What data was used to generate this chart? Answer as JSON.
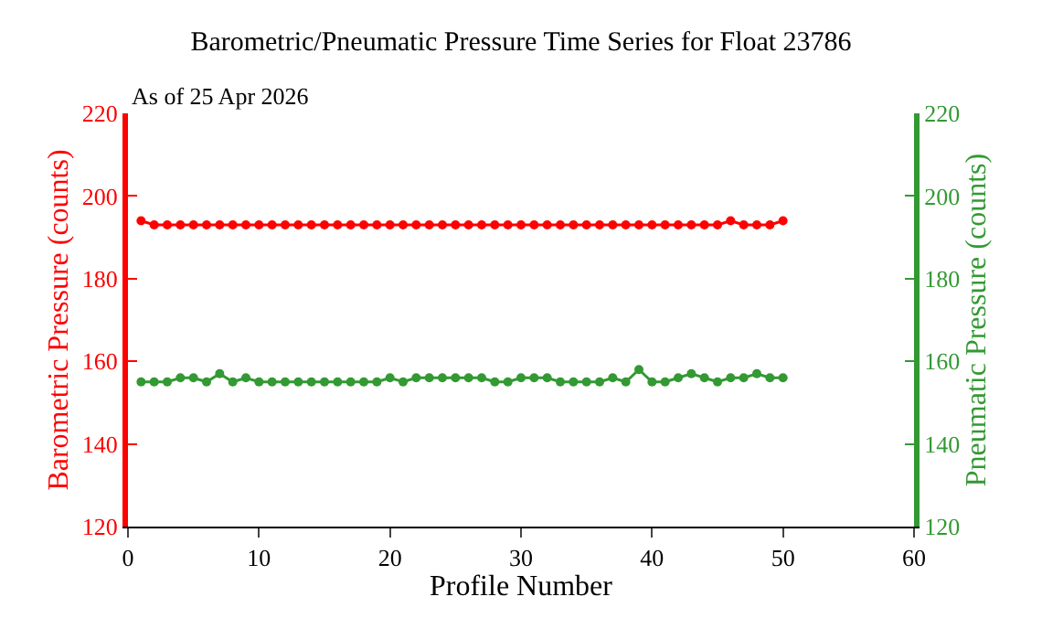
{
  "chart_data": {
    "type": "line",
    "title": "Barometric/Pneumatic Pressure Time Series for Float 23786",
    "subtitle": "As of 25 Apr 2026",
    "xlabel": "Profile Number",
    "ylabel": "Barometric Pressure (counts)",
    "y2label": "Pneumatic Pressure (counts)",
    "x": [
      1,
      2,
      3,
      4,
      5,
      6,
      7,
      8,
      9,
      10,
      11,
      12,
      13,
      14,
      15,
      16,
      17,
      18,
      19,
      20,
      21,
      22,
      23,
      24,
      25,
      26,
      27,
      28,
      29,
      30,
      31,
      32,
      33,
      34,
      35,
      36,
      37,
      38,
      39,
      40,
      41,
      42,
      43,
      44,
      45,
      46,
      47,
      48,
      49,
      50
    ],
    "series": [
      {
        "color": "#ff0000",
        "values": [
          194,
          193,
          193,
          193,
          193,
          193,
          193,
          193,
          193,
          193,
          193,
          193,
          193,
          193,
          193,
          193,
          193,
          193,
          193,
          193,
          193,
          193,
          193,
          193,
          193,
          193,
          193,
          193,
          193,
          193,
          193,
          193,
          193,
          193,
          193,
          193,
          193,
          193,
          193,
          193,
          193,
          193,
          193,
          193,
          193,
          194,
          193,
          193,
          193,
          194
        ]
      },
      {
        "color": "#339933",
        "axis": "y2",
        "values": [
          155,
          155,
          155,
          156,
          156,
          155,
          157,
          155,
          156,
          155,
          155,
          155,
          155,
          155,
          155,
          155,
          155,
          155,
          155,
          156,
          155,
          156,
          156,
          156,
          156,
          156,
          156,
          155,
          155,
          156,
          156,
          156,
          155,
          155,
          155,
          155,
          156,
          155,
          158,
          155,
          155,
          156,
          157,
          156,
          155,
          156,
          156,
          157,
          156,
          156
        ]
      }
    ],
    "xlim": [
      0,
      60
    ],
    "xticks": [
      0,
      10,
      20,
      30,
      40,
      50,
      60
    ],
    "ylim": [
      120,
      220
    ],
    "yticks": [
      120,
      140,
      160,
      180,
      200,
      220
    ],
    "y2lim": [
      120,
      220
    ],
    "y2ticks": [
      120,
      140,
      160,
      180,
      200,
      220
    ],
    "marker": "circle",
    "line_style": "solid"
  }
}
